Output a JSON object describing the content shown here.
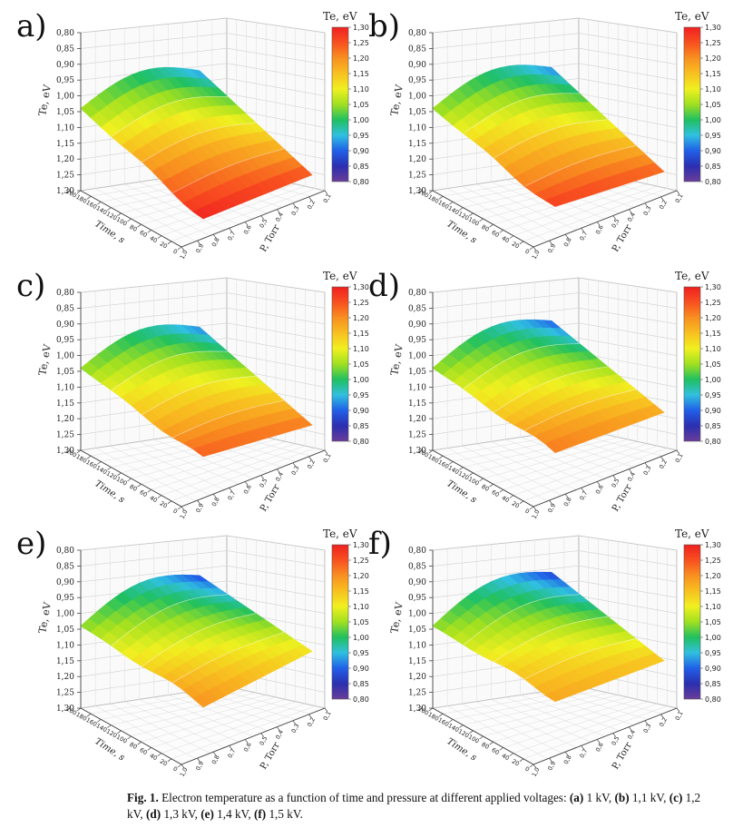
{
  "chart_data": [
    {
      "panel": "a)",
      "type": "surface3d",
      "voltage_kv": 1.0,
      "colorbar_title": "Te, eV",
      "zlabel": "Te, eV",
      "xlabel": "Time, s",
      "ylabel": "P, Torr",
      "zlim": [
        0.8,
        1.3
      ],
      "clim": [
        0.8,
        1.3
      ],
      "z_ticks": [
        "0,80",
        "0,85",
        "0,90",
        "0,95",
        "1,00",
        "1,05",
        "1,10",
        "1,15",
        "1,20",
        "1,25",
        "1,30"
      ],
      "cbar_ticks": [
        "1,30",
        "1,25",
        "1,20",
        "1,15",
        "1,10",
        "1,05",
        "1,00",
        "0,95",
        "0,90",
        "0,85",
        "0,80"
      ],
      "time_ticks": [
        "200",
        "180",
        "160",
        "140",
        "120",
        "100",
        "80",
        "60",
        "40",
        "20",
        "0"
      ],
      "pressure_ticks": [
        "1,0",
        "0,9",
        "0,8",
        "0,7",
        "0,6",
        "0,5",
        "0,4",
        "0,3",
        "0,2",
        "0,1"
      ],
      "surface": {
        "te_min": 0.92,
        "te_max": 1.3,
        "near_corner": 1.28,
        "right_edge": 1.25
      }
    },
    {
      "panel": "b)",
      "type": "surface3d",
      "voltage_kv": 1.1,
      "colorbar_title": "Te, eV",
      "zlabel": "Te, eV",
      "xlabel": "Time, s",
      "ylabel": "P, Torr",
      "zlim": [
        0.8,
        1.3
      ],
      "clim": [
        0.8,
        1.3
      ],
      "z_ticks": [
        "0,80",
        "0,85",
        "0,90",
        "0,95",
        "1,00",
        "1,05",
        "1,10",
        "1,15",
        "1,20",
        "1,25",
        "1,30"
      ],
      "cbar_ticks": [
        "1,30",
        "1,25",
        "1,20",
        "1,15",
        "1,10",
        "1,05",
        "1,00",
        "0,95",
        "0,90",
        "0,85",
        "0,80"
      ],
      "time_ticks": [
        "200",
        "180",
        "160",
        "140",
        "120",
        "100",
        "80",
        "60",
        "40",
        "20",
        "0"
      ],
      "pressure_ticks": [
        "1,0",
        "0,9",
        "0,8",
        "0,7",
        "0,6",
        "0,5",
        "0,4",
        "0,3",
        "0,2",
        "0,1"
      ],
      "surface": {
        "te_min": 0.91,
        "te_max": 1.27,
        "near_corner": 1.25,
        "right_edge": 1.24
      }
    },
    {
      "panel": "c)",
      "type": "surface3d",
      "voltage_kv": 1.2,
      "colorbar_title": "Te, eV",
      "zlabel": "Te, eV",
      "xlabel": "Time, s",
      "ylabel": "P, Torr",
      "zlim": [
        0.8,
        1.3
      ],
      "clim": [
        0.8,
        1.3
      ],
      "z_ticks": [
        "0,80",
        "0,85",
        "0,90",
        "0,95",
        "1,00",
        "1,05",
        "1,10",
        "1,15",
        "1,20",
        "1,25",
        "1,30"
      ],
      "cbar_ticks": [
        "1,30",
        "1,25",
        "1,20",
        "1,15",
        "1,10",
        "1,05",
        "1,00",
        "0,95",
        "0,90",
        "0,85",
        "0,80"
      ],
      "time_ticks": [
        "200",
        "180",
        "160",
        "140",
        "120",
        "100",
        "80",
        "60",
        "40",
        "20",
        "0"
      ],
      "pressure_ticks": [
        "1,0",
        "0,9",
        "0,8",
        "0,7",
        "0,6",
        "0,5",
        "0,4",
        "0,3",
        "0,2",
        "0,1"
      ],
      "surface": {
        "te_min": 0.91,
        "te_max": 1.25,
        "near_corner": 1.22,
        "right_edge": 1.22
      }
    },
    {
      "panel": "d)",
      "type": "surface3d",
      "voltage_kv": 1.3,
      "colorbar_title": "Te, eV",
      "zlabel": "Te, eV",
      "xlabel": "Time, s",
      "ylabel": "P, Torr",
      "zlim": [
        0.8,
        1.3
      ],
      "clim": [
        0.8,
        1.3
      ],
      "z_ticks": [
        "0,80",
        "0,85",
        "0,90",
        "0,95",
        "1,00",
        "1,05",
        "1,10",
        "1,15",
        "1,20",
        "1,25",
        "1,30"
      ],
      "cbar_ticks": [
        "1,30",
        "1,25",
        "1,20",
        "1,15",
        "1,10",
        "1,05",
        "1,00",
        "0,95",
        "0,90",
        "0,85",
        "0,80"
      ],
      "time_ticks": [
        "200",
        "180",
        "160",
        "140",
        "120",
        "100",
        "80",
        "60",
        "40",
        "20",
        "0"
      ],
      "pressure_ticks": [
        "1,0",
        "0,9",
        "0,8",
        "0,7",
        "0,6",
        "0,5",
        "0,4",
        "0,3",
        "0,2",
        "0,1"
      ],
      "surface": {
        "te_min": 0.89,
        "te_max": 1.23,
        "near_corner": 1.2,
        "right_edge": 1.18
      }
    },
    {
      "panel": "e)",
      "type": "surface3d",
      "voltage_kv": 1.4,
      "colorbar_title": "Te, eV",
      "zlabel": "Te, eV",
      "xlabel": "Time, s",
      "ylabel": "P, Torr",
      "zlim": [
        0.8,
        1.3
      ],
      "clim": [
        0.8,
        1.3
      ],
      "z_ticks": [
        "0,80",
        "0,85",
        "0,90",
        "0,95",
        "1,00",
        "1,05",
        "1,10",
        "1,15",
        "1,20",
        "1,25",
        "1,30"
      ],
      "cbar_ticks": [
        "1,30",
        "1,25",
        "1,20",
        "1,15",
        "1,10",
        "1,05",
        "1,00",
        "0,95",
        "0,90",
        "0,85",
        "0,80"
      ],
      "time_ticks": [
        "200",
        "180",
        "160",
        "140",
        "120",
        "100",
        "80",
        "60",
        "40",
        "20",
        "0"
      ],
      "pressure_ticks": [
        "1,0",
        "0,9",
        "0,8",
        "0,7",
        "0,6",
        "0,5",
        "0,4",
        "0,3",
        "0,2",
        "0,1"
      ],
      "surface": {
        "te_min": 0.88,
        "te_max": 1.22,
        "near_corner": 1.18,
        "right_edge": 1.12
      }
    },
    {
      "panel": "f)",
      "type": "surface3d",
      "voltage_kv": 1.5,
      "colorbar_title": "Te, eV",
      "zlabel": "Te, eV",
      "xlabel": "Time, s",
      "ylabel": "P, Torr",
      "zlim": [
        0.8,
        1.3
      ],
      "clim": [
        0.8,
        1.3
      ],
      "z_ticks": [
        "0,80",
        "0,85",
        "0,90",
        "0,95",
        "1,00",
        "1,05",
        "1,10",
        "1,15",
        "1,20",
        "1,25",
        "1,30"
      ],
      "cbar_ticks": [
        "1,30",
        "1,25",
        "1,20",
        "1,15",
        "1,10",
        "1,05",
        "1,00",
        "0,95",
        "0,90",
        "0,85",
        "0,80"
      ],
      "time_ticks": [
        "200",
        "180",
        "160",
        "140",
        "120",
        "100",
        "80",
        "60",
        "40",
        "20",
        "0"
      ],
      "pressure_ticks": [
        "1,0",
        "0,9",
        "0,8",
        "0,7",
        "0,6",
        "0,5",
        "0,4",
        "0,3",
        "0,2",
        "0,1"
      ],
      "surface": {
        "te_min": 0.87,
        "te_max": 1.2,
        "near_corner": 1.16,
        "right_edge": 1.15
      }
    }
  ],
  "colormap": [
    "#6a3d9a",
    "#2b2fb0",
    "#2060e8",
    "#30c0e0",
    "#20c060",
    "#a0e020",
    "#f0f020",
    "#f8c020",
    "#f89020",
    "#f85020",
    "#f02020"
  ],
  "caption": {
    "prefix": "Fig. 1.",
    "text": "Electron temperature as a function of time and pressure at different applied voltages:",
    "items": [
      {
        "label": "(a)",
        "value": "1 kV,"
      },
      {
        "label": "(b)",
        "value": "1,1 kV,"
      },
      {
        "label": "(c)",
        "value": "1,2 kV,"
      },
      {
        "label": "(d)",
        "value": "1,3 kV,"
      },
      {
        "label": "(e)",
        "value": "1,4 kV,"
      },
      {
        "label": "(f)",
        "value": "1,5 kV."
      }
    ]
  }
}
